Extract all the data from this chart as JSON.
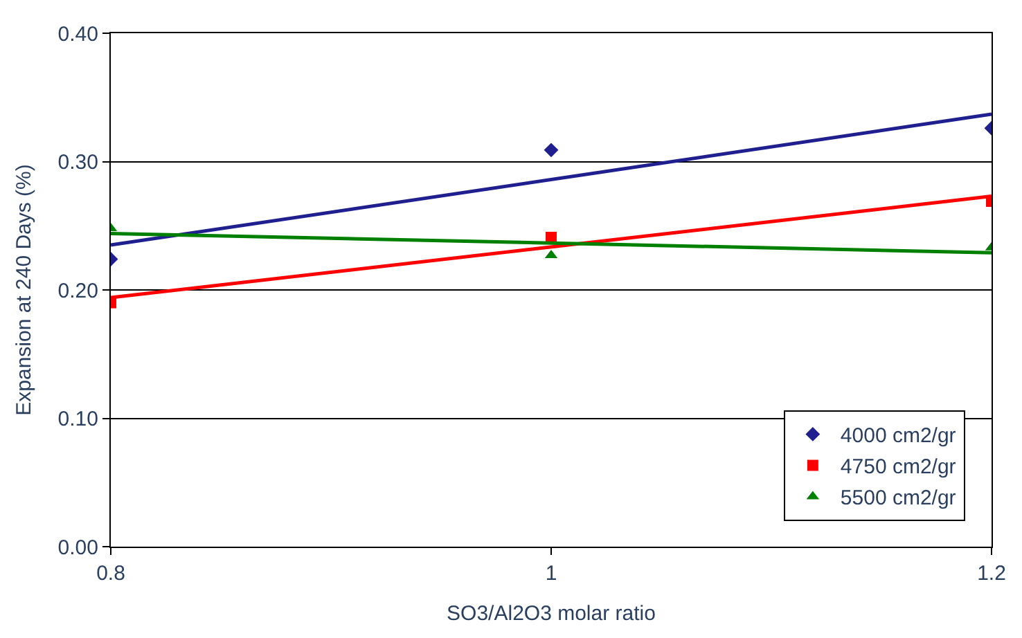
{
  "chart_data": {
    "type": "scatter",
    "xlabel": "SO3/Al2O3 molar ratio",
    "ylabel": "Expansion at 240 Days (%)",
    "xlim": [
      0.8,
      1.2
    ],
    "xticks": [
      0.8,
      1,
      1.2
    ],
    "ylim": [
      0,
      0.4
    ],
    "yticks": [
      {
        "value": 0,
        "label": "0.00"
      },
      {
        "value": 0.1,
        "label": "0.10"
      },
      {
        "value": 0.2,
        "label": "0.20"
      },
      {
        "value": 0.3,
        "label": "0.30"
      },
      {
        "value": 0.4,
        "label": "0.40"
      }
    ],
    "grid": "y",
    "legend": "bottom right",
    "series": [
      {
        "name": "4000 cm2/gr",
        "color": "#1f1f8f",
        "marker": "diamond",
        "x": [
          0.8,
          1,
          1.2
        ],
        "values": [
          0.224,
          0.309,
          0.326
        ]
      },
      {
        "name": "4750 cm2/gr",
        "color": "#ff0000",
        "marker": "square",
        "x": [
          0.8,
          1,
          1.2
        ],
        "values": [
          0.19,
          0.241,
          0.269
        ]
      },
      {
        "name": "5500 cm2/gr",
        "color": "#008000",
        "marker": "triangle",
        "x": [
          0.8,
          1,
          1.2
        ],
        "values": [
          0.248,
          0.227,
          0.233
        ]
      },
      {
        "type": "line",
        "color": "#1f1f8f",
        "x": [
          0.8,
          1.2
        ],
        "values": [
          0.235,
          0.337
        ]
      },
      {
        "type": "line",
        "color": "#ff0000",
        "x": [
          0.8,
          1.2
        ],
        "values": [
          0.194,
          0.273
        ]
      },
      {
        "type": "line",
        "color": "#008000",
        "x": [
          0.8,
          1.2
        ],
        "values": [
          0.244,
          0.229
        ]
      }
    ]
  }
}
